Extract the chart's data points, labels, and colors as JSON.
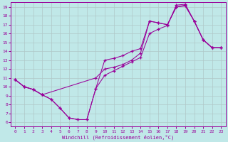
{
  "bg_color": "#c0e8e8",
  "line_color": "#990099",
  "grid_color": "#b0c8c8",
  "xlabel": "Windchill (Refroidissement éolien,°C)",
  "xlim": [
    -0.5,
    23.5
  ],
  "ylim": [
    5.5,
    19.5
  ],
  "xticks": [
    0,
    1,
    2,
    3,
    4,
    5,
    6,
    7,
    8,
    9,
    10,
    11,
    12,
    13,
    14,
    15,
    16,
    17,
    18,
    19,
    20,
    21,
    22,
    23
  ],
  "yticks": [
    6,
    7,
    8,
    9,
    10,
    11,
    12,
    13,
    14,
    15,
    16,
    17,
    18,
    19
  ],
  "line1_x": [
    0,
    1,
    2,
    3,
    4,
    5,
    6,
    7,
    8,
    9,
    10,
    11,
    12,
    13,
    14,
    15,
    16,
    17,
    18,
    19,
    20,
    21,
    22,
    23
  ],
  "line1_y": [
    10.8,
    10.0,
    9.7,
    9.1,
    8.6,
    7.6,
    6.5,
    6.3,
    6.3,
    9.8,
    13.0,
    13.2,
    13.5,
    14.0,
    14.3,
    17.4,
    17.2,
    17.0,
    19.0,
    19.1,
    17.4,
    15.3,
    14.4,
    14.4
  ],
  "line2_x": [
    0,
    1,
    2,
    3,
    4,
    5,
    6,
    7,
    8,
    9,
    10,
    11,
    12,
    13,
    14,
    15,
    16,
    17,
    18,
    19,
    20,
    21,
    22,
    23
  ],
  "line2_y": [
    10.8,
    10.0,
    9.7,
    9.1,
    8.6,
    7.6,
    6.5,
    6.3,
    6.3,
    9.8,
    11.3,
    11.8,
    12.3,
    12.8,
    13.3,
    16.0,
    16.5,
    16.9,
    19.2,
    19.3,
    17.4,
    15.3,
    14.4,
    14.4
  ],
  "line3_x": [
    0,
    1,
    2,
    3,
    9,
    10,
    11,
    12,
    13,
    14,
    15,
    16,
    17,
    18,
    19,
    20,
    21,
    22,
    23
  ],
  "line3_y": [
    10.8,
    10.0,
    9.7,
    9.1,
    11.0,
    12.0,
    12.2,
    12.5,
    13.0,
    13.8,
    17.4,
    17.2,
    17.0,
    19.0,
    19.2,
    17.4,
    15.3,
    14.4,
    14.4
  ]
}
